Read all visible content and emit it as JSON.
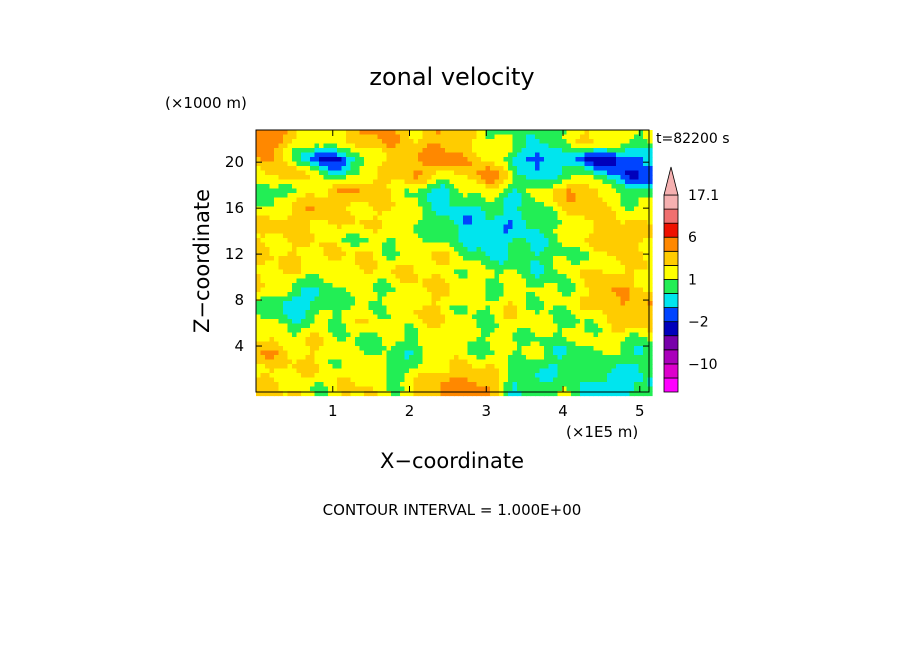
{
  "chart_data": {
    "type": "heatmap",
    "title": "zonal velocity",
    "time_label": "t=82200 s",
    "xlabel": "X−coordinate",
    "ylabel": "Z−coordinate",
    "x_unit": "(×1E5 m)",
    "y_unit": "(×1000 m)",
    "xlim": [
      0,
      5.12
    ],
    "ylim": [
      0,
      22.8
    ],
    "x_ticks": [
      1,
      2,
      3,
      4,
      5
    ],
    "y_ticks": [
      4,
      8,
      12,
      16,
      20
    ],
    "footer": "CONTOUR INTERVAL = 1.000E+00",
    "colorbar": {
      "ticks": [
        {
          "value": 17.1,
          "label": "17.1"
        },
        {
          "value": 6,
          "label": "6"
        },
        {
          "value": 1,
          "label": "1"
        },
        {
          "value": -2,
          "label": "−2"
        },
        {
          "value": -10,
          "label": "−10"
        }
      ],
      "levels": [
        {
          "from": -20,
          "to": -15,
          "color": "#ff00ff"
        },
        {
          "from": -15,
          "to": -10,
          "color": "#dd00cc"
        },
        {
          "from": -10,
          "to": -6,
          "color": "#aa00bb"
        },
        {
          "from": -6,
          "to": -3,
          "color": "#7700aa"
        },
        {
          "from": -3,
          "to": -2,
          "color": "#0000bb"
        },
        {
          "from": -2,
          "to": -1,
          "color": "#0044ff"
        },
        {
          "from": -1,
          "to": 0,
          "color": "#00e5ee"
        },
        {
          "from": 0,
          "to": 1,
          "color": "#22ee55"
        },
        {
          "from": 1,
          "to": 2,
          "color": "#ffff00"
        },
        {
          "from": 2,
          "to": 3,
          "color": "#ffcc00"
        },
        {
          "from": 3,
          "to": 6,
          "color": "#ff8800"
        },
        {
          "from": 6,
          "to": 10,
          "color": "#ee1100"
        },
        {
          "from": 10,
          "to": 14,
          "color": "#f07070"
        },
        {
          "from": 14,
          "to": 17.1,
          "color": "#f5b0b0"
        }
      ]
    },
    "field": {
      "x": [
        0.16,
        0.48,
        0.8,
        1.12,
        1.44,
        1.76,
        2.08,
        2.4,
        2.72,
        3.04,
        3.36,
        3.68,
        4.0,
        4.32,
        4.64,
        4.96
      ],
      "z": [
        0.7,
        2.1,
        3.5,
        4.9,
        6.3,
        7.7,
        9.1,
        10.5,
        11.9,
        13.3,
        14.7,
        16.1,
        17.5,
        18.9,
        20.3,
        21.7
      ],
      "u": [
        [
          2,
          2,
          1,
          2,
          2,
          1,
          2,
          3,
          4,
          3,
          0,
          0,
          1,
          0,
          -1,
          0
        ],
        [
          2,
          2,
          2,
          1,
          2,
          0,
          1,
          2,
          2,
          2,
          1,
          0,
          0,
          1,
          0,
          0
        ],
        [
          3,
          2,
          2,
          1,
          1,
          1,
          0,
          2,
          1,
          1,
          1,
          1,
          0,
          1,
          1,
          0
        ],
        [
          2,
          1,
          2,
          1,
          1,
          1,
          1,
          2,
          1,
          1,
          1,
          1,
          1,
          1,
          2,
          1
        ],
        [
          1,
          0,
          1,
          1,
          2,
          1,
          2,
          2,
          1,
          1,
          2,
          1,
          1,
          1,
          2,
          3
        ],
        [
          1,
          -1,
          0,
          1,
          1,
          1,
          2,
          2,
          1,
          1,
          2,
          1,
          1,
          2,
          3,
          3
        ],
        [
          2,
          1,
          0,
          1,
          1,
          1,
          2,
          2,
          2,
          1,
          1,
          1,
          1,
          2,
          3,
          2
        ],
        [
          2,
          2,
          1,
          2,
          2,
          2,
          2,
          2,
          1,
          1,
          1,
          0,
          1,
          2,
          2,
          2
        ],
        [
          2,
          2,
          2,
          2,
          2,
          1,
          2,
          2,
          1,
          0,
          0,
          0,
          1,
          1,
          2,
          2
        ],
        [
          2,
          2,
          2,
          1,
          1,
          1,
          1,
          1,
          0,
          -1,
          0,
          0,
          1,
          2,
          3,
          2
        ],
        [
          2,
          3,
          2,
          2,
          2,
          2,
          1,
          0,
          -1,
          0,
          -1,
          0,
          1,
          2,
          2,
          2
        ],
        [
          1,
          2,
          3,
          2,
          2,
          2,
          1,
          0,
          0,
          0,
          0,
          1,
          2,
          3,
          2,
          1
        ],
        [
          0,
          1,
          2,
          3,
          3,
          2,
          1,
          -1,
          1,
          2,
          0,
          1,
          3,
          3,
          1,
          0
        ],
        [
          2,
          3,
          1,
          0,
          2,
          2,
          3,
          2,
          2,
          4,
          1,
          -1,
          0,
          1,
          -1,
          -2
        ],
        [
          3,
          1,
          -2,
          -2,
          1,
          2,
          3,
          4,
          3,
          2,
          0,
          -2,
          0,
          -2,
          -3,
          -1
        ],
        [
          4,
          2,
          1,
          2,
          3,
          3,
          2,
          3,
          2,
          1,
          1,
          0,
          1,
          2,
          2,
          1
        ]
      ]
    }
  }
}
